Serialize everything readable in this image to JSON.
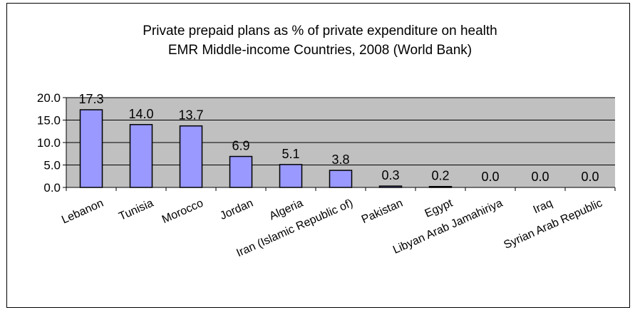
{
  "chart_data": {
    "type": "bar",
    "title": "Private prepaid plans as % of private expenditure on health",
    "subtitle": "EMR Middle-income Countries, 2008 (World Bank)",
    "categories": [
      "Lebanon",
      "Tunisia",
      "Morocco",
      "Jordan",
      "Algeria",
      "Iran (Islamic Republic of)",
      "Pakistan",
      "Egypt",
      "Libyan Arab Jamahiriya",
      "Iraq",
      "Syrian Arab Republic"
    ],
    "values": [
      17.3,
      14.0,
      13.7,
      6.9,
      5.1,
      3.8,
      0.3,
      0.2,
      0.0,
      0.0,
      0.0
    ],
    "value_labels": [
      "17.3",
      "14.0",
      "13.7",
      "6.9",
      "5.1",
      "3.8",
      "0.3",
      "0.2",
      "0.0",
      "0.0",
      "0.0"
    ],
    "yticks": [
      "0.0",
      "5.0",
      "10.0",
      "15.0",
      "20.0"
    ],
    "ylim": [
      0,
      20
    ],
    "grid": true,
    "legend": "none",
    "colors": {
      "bar": "#9999ff",
      "plot_background": "#c0c0c0",
      "grid": "#000000"
    }
  }
}
